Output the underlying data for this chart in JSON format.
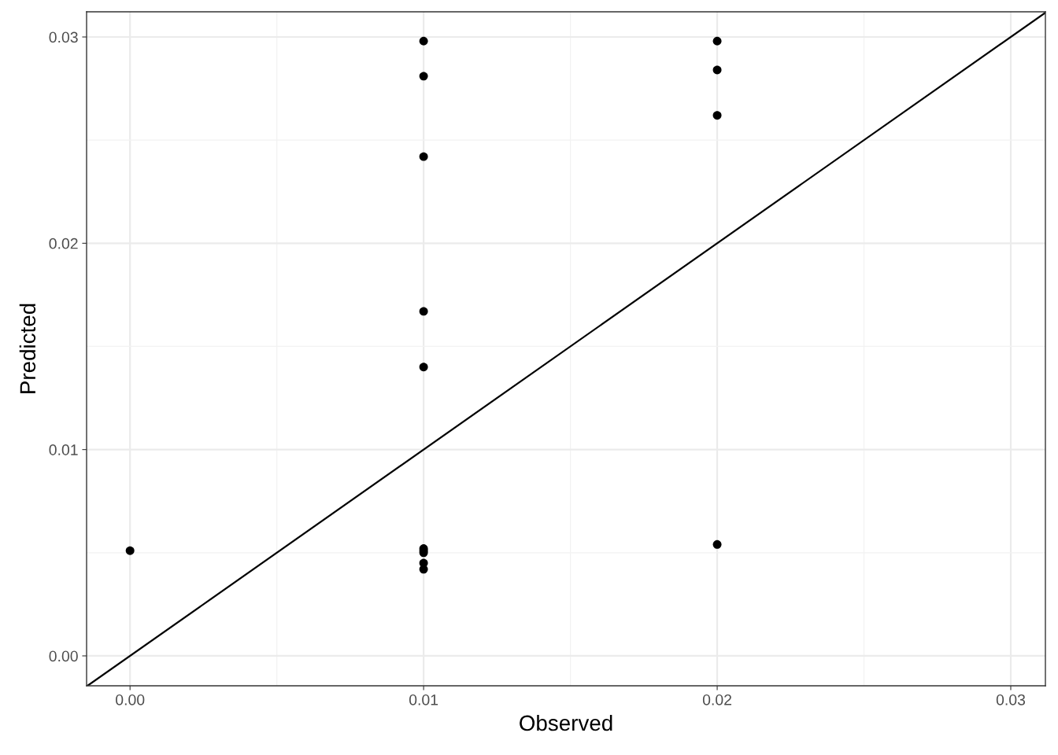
{
  "chart_data": {
    "type": "scatter",
    "xlabel": "Observed",
    "ylabel": "Predicted",
    "series": [
      {
        "color": "#000000",
        "marker": "circle",
        "x": [
          0,
          0.01,
          0.01,
          0.01,
          0.01,
          0.01,
          0.01,
          0.01,
          0.01,
          0.01,
          0.01,
          0.02,
          0.02,
          0.02,
          0.02
        ],
        "values": [
          0.0051,
          0.0298,
          0.0281,
          0.0242,
          0.0167,
          0.014,
          0.0052,
          0.0051,
          0.005,
          0.0045,
          0.0042,
          0.0298,
          0.0284,
          0.0262,
          0.0054
        ]
      },
      {
        "type": "line",
        "color": "#000000",
        "x": [
          -0.00145,
          0.03118
        ],
        "values": [
          -0.00145,
          0.03118
        ]
      }
    ],
    "xlim": [
      -0.00148,
      0.03118
    ],
    "ylim": [
      -0.00145,
      0.03122
    ],
    "xticks": [
      {
        "value": 0,
        "label": "0.00"
      },
      {
        "value": 0.01,
        "label": "0.01"
      },
      {
        "value": 0.02,
        "label": "0.02"
      },
      {
        "value": 0.03,
        "label": "0.03"
      }
    ],
    "yticks": [
      {
        "value": 0,
        "label": "0.00"
      },
      {
        "value": 0.01,
        "label": "0.01"
      },
      {
        "value": 0.02,
        "label": "0.02"
      },
      {
        "value": 0.03,
        "label": "0.03"
      }
    ],
    "grid": true
  }
}
